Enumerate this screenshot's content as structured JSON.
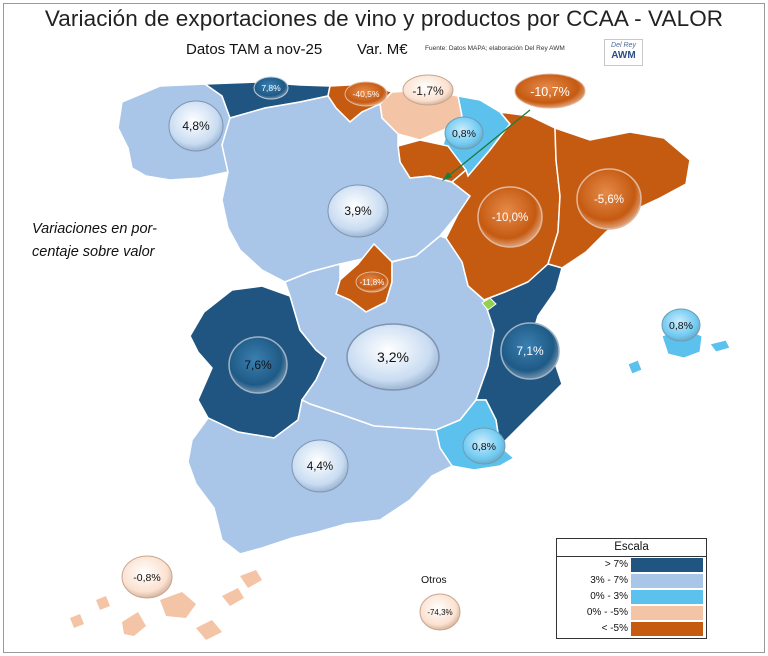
{
  "title": "Variación de exportaciones de vino y productos por CCAA - VALOR",
  "subtitle": "Datos TAM a nov-25",
  "unit": "Var. M€",
  "source": "Fuente: Datos MAPA; elaboración Del Rey AWM",
  "logo": {
    "top": "Del Rey",
    "bottom": "AWM"
  },
  "note": {
    "line1": "Variaciones en por-",
    "line2": "centaje sobre valor"
  },
  "legend": {
    "title": "Escala",
    "items": [
      {
        "label": "> 7%",
        "color": "#1f5580"
      },
      {
        "label": "3% - 7%",
        "color": "#a9c6e8"
      },
      {
        "label": "0% - 3%",
        "color": "#5dc1ee"
      },
      {
        "label": "0% - -5%",
        "color": "#f4c4a6"
      },
      {
        "label": "< -5%",
        "color": "#c55a11"
      }
    ]
  },
  "otros_label": "Otros",
  "regions": {
    "galicia": "4,8%",
    "asturias": "7,8%",
    "cantabria": "-40,5%",
    "pais_vasco": "-1,7%",
    "navarra": "0,8%",
    "la_rioja": "-10,7%",
    "castilla_leon": "3,9%",
    "aragon": "-10,0%",
    "cataluna": "-5,6%",
    "madrid": "-11,8%",
    "extremadura": "7,6%",
    "castilla_la_mancha": "3,2%",
    "valencia": "7,1%",
    "baleares": "0,8%",
    "murcia": "0,8%",
    "andalucia": "4,4%",
    "canarias": "-0,8%",
    "otros": "-74,3%"
  }
}
